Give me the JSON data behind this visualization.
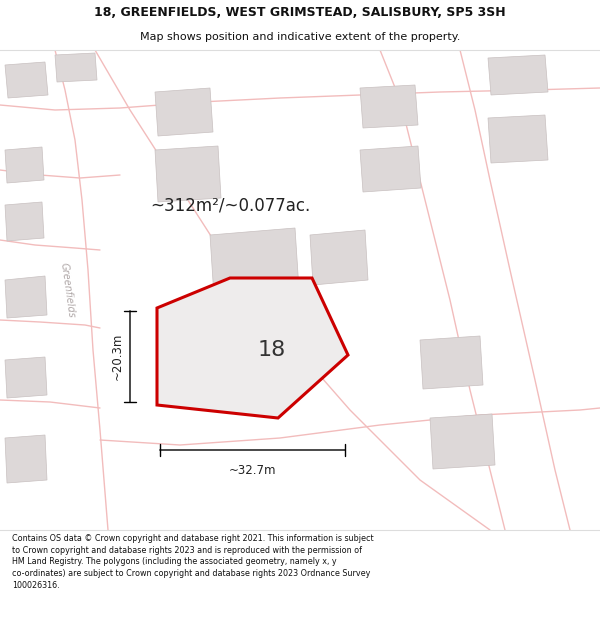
{
  "title_line1": "18, GREENFIELDS, WEST GRIMSTEAD, SALISBURY, SP5 3SH",
  "title_line2": "Map shows position and indicative extent of the property.",
  "footer_text": "Contains OS data © Crown copyright and database right 2021. This information is subject to Crown copyright and database rights 2023 and is reproduced with the permission of HM Land Registry. The polygons (including the associated geometry, namely x, y co-ordinates) are subject to Crown copyright and database rights 2023 Ordnance Survey 100026316.",
  "area_label": "~312m²/~0.077ac.",
  "width_label": "~32.7m",
  "height_label": "~20.3m",
  "plot_number": "18",
  "map_bg": "#f7f4f4",
  "plot_polygon_color": "#cc0000",
  "plot_fill_color": "#eeecec",
  "building_fill": "#ddd8d8",
  "building_edge": "#c8c0c0",
  "road_color": "#f2bcbc",
  "header_bg": "#ffffff",
  "footer_bg": "#ffffff",
  "text_color": "#222222",
  "greenfields_label_color": "#b0a8a8"
}
